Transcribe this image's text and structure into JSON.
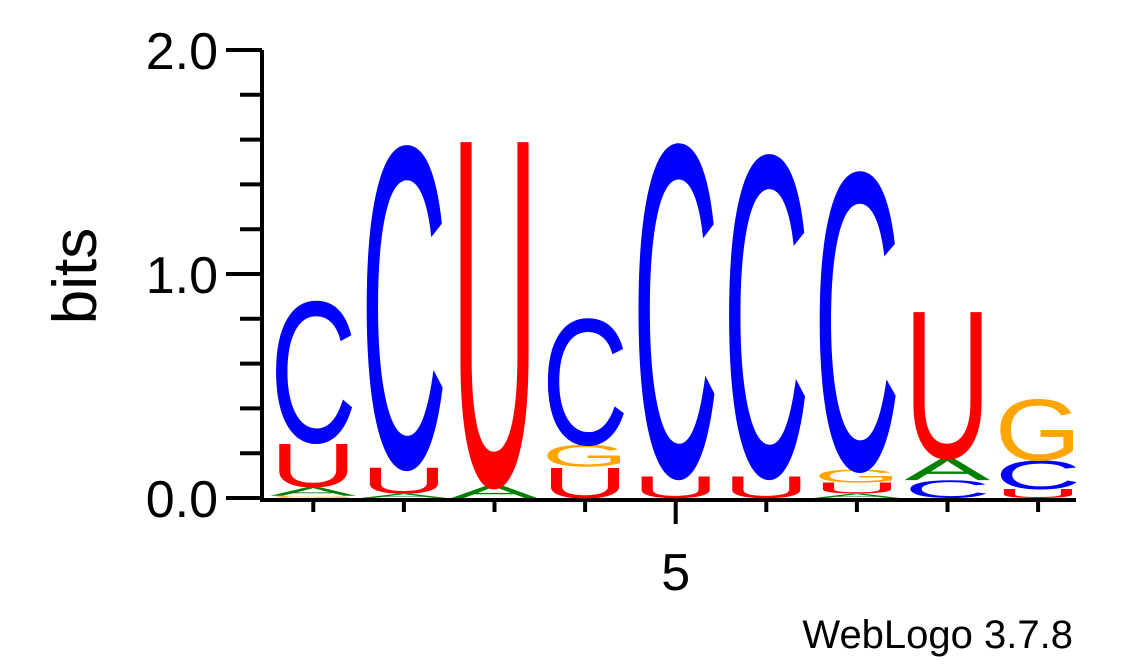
{
  "chart_data": {
    "type": "sequence_logo",
    "ylabel": "bits",
    "ylim": [
      0,
      2.0
    ],
    "y_ticks": [
      {
        "value": 0.0,
        "label": "0.0"
      },
      {
        "value": 1.0,
        "label": "1.0"
      },
      {
        "value": 2.0,
        "label": "2.0"
      }
    ],
    "x_ticks_labeled": [
      {
        "position": 5,
        "label": "5"
      }
    ],
    "positions": [
      1,
      2,
      3,
      4,
      5,
      6,
      7,
      8,
      9
    ],
    "stacks": [
      {
        "position": 1,
        "letters": [
          {
            "letter": "G",
            "height": 0.01
          },
          {
            "letter": "A",
            "height": 0.04
          },
          {
            "letter": "U",
            "height": 0.2
          },
          {
            "letter": "C",
            "height": 0.65
          }
        ]
      },
      {
        "position": 2,
        "letters": [
          {
            "letter": "A",
            "height": 0.02
          },
          {
            "letter": "U",
            "height": 0.12
          },
          {
            "letter": "C",
            "height": 1.48
          }
        ]
      },
      {
        "position": 3,
        "letters": [
          {
            "letter": "A",
            "height": 0.06
          },
          {
            "letter": "U",
            "height": 1.6
          }
        ]
      },
      {
        "position": 4,
        "letters": [
          {
            "letter": "U",
            "height": 0.14
          },
          {
            "letter": "G",
            "height": 0.1
          },
          {
            "letter": "C",
            "height": 0.58
          }
        ]
      },
      {
        "position": 5,
        "letters": [
          {
            "letter": "U",
            "height": 0.1
          },
          {
            "letter": "C",
            "height": 1.53
          }
        ]
      },
      {
        "position": 6,
        "letters": [
          {
            "letter": "U",
            "height": 0.1
          },
          {
            "letter": "C",
            "height": 1.48
          }
        ]
      },
      {
        "position": 7,
        "letters": [
          {
            "letter": "A",
            "height": 0.02
          },
          {
            "letter": "U",
            "height": 0.05
          },
          {
            "letter": "G",
            "height": 0.06
          },
          {
            "letter": "C",
            "height": 1.37
          }
        ]
      },
      {
        "position": 8,
        "letters": [
          {
            "letter": "C",
            "height": 0.08
          },
          {
            "letter": "A",
            "height": 0.1
          },
          {
            "letter": "U",
            "height": 0.68
          }
        ]
      },
      {
        "position": 9,
        "letters": [
          {
            "letter": "U",
            "height": 0.04
          },
          {
            "letter": "C",
            "height": 0.13
          },
          {
            "letter": "G",
            "height": 0.28
          }
        ]
      }
    ],
    "colors": {
      "A": "#008000",
      "C": "#0000ff",
      "G": "#ffa500",
      "U": "#ff0000"
    },
    "credit": "WebLogo 3.7.8"
  }
}
